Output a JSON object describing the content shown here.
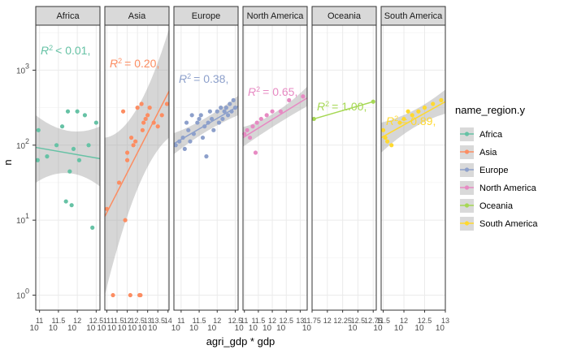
{
  "chart_data": {
    "type": "scatter",
    "xlabel": "agri_gdp * gdp",
    "ylabel": "n",
    "y_scale": "log10",
    "y_range_log10": [
      -0.2,
      3.6
    ],
    "y_ticks": [
      {
        "log10": 0,
        "base": "10",
        "exp": "0"
      },
      {
        "log10": 1,
        "base": "10",
        "exp": "1"
      },
      {
        "log10": 2,
        "base": "10",
        "exp": "2"
      },
      {
        "log10": 3,
        "base": "10",
        "exp": "3"
      }
    ],
    "legend": {
      "title": "name_region.y",
      "placement": "right",
      "items": [
        {
          "label": "Africa",
          "color": "#66C2A5"
        },
        {
          "label": "Asia",
          "color": "#FC8D62"
        },
        {
          "label": "Europe",
          "color": "#8DA0CB"
        },
        {
          "label": "North America",
          "color": "#E78AC3"
        },
        {
          "label": "Oceania",
          "color": "#A6D854"
        },
        {
          "label": "South America",
          "color": "#FFD92F"
        }
      ]
    },
    "panels": [
      {
        "name": "Africa",
        "color": "#66C2A5",
        "r2_label": "< 0.01, ",
        "xlim_log10": [
          10.9,
          12.6
        ],
        "x_ticks": [
          {
            "log10": 11,
            "base": "10",
            "exp": "11",
            "show_base": true
          },
          {
            "log10": 11.5,
            "base": "10",
            "exp": "11.5",
            "show_base": true
          },
          {
            "log10": 12,
            "base": "10",
            "exp": "12",
            "show_base": true
          },
          {
            "log10": 12.5,
            "base": "10",
            "exp": "12.5",
            "show_base": true
          }
        ],
        "points": [
          [
            10.95,
            1.8
          ],
          [
            10.97,
            2.2
          ],
          [
            11.2,
            1.85
          ],
          [
            11.6,
            2.25
          ],
          [
            11.45,
            2.0
          ],
          [
            11.8,
            1.65
          ],
          [
            12.0,
            2.45
          ],
          [
            12.3,
            2.0
          ],
          [
            12.05,
            1.8
          ],
          [
            11.7,
            1.25
          ],
          [
            11.85,
            1.2
          ],
          [
            12.2,
            2.4
          ],
          [
            12.4,
            0.9
          ],
          [
            11.9,
            1.95
          ],
          [
            12.5,
            2.3
          ],
          [
            11.75,
            2.45
          ]
        ],
        "fit": {
          "x0": 10.9,
          "y0": 1.97,
          "x1": 12.6,
          "y1": 1.82
        },
        "band": {
          "lo0": 1.5,
          "hi0": 2.4,
          "lom": 1.78,
          "him": 2.06,
          "lo1": 1.45,
          "hi1": 2.25
        }
      },
      {
        "name": "Asia",
        "color": "#FC8D62",
        "r2_label": "= 0.20, ",
        "xlim_log10": [
          10.9,
          14.05
        ],
        "x_ticks": [
          {
            "log10": 11,
            "base": "10",
            "exp": "11",
            "show_base": true
          },
          {
            "log10": 11.5,
            "base": "10",
            "exp": "11.5",
            "show_base": true
          },
          {
            "log10": 12,
            "base": "10",
            "exp": "12",
            "show_base": true
          },
          {
            "log10": 12.5,
            "base": "10",
            "exp": "12.5",
            "show_base": true
          },
          {
            "log10": 13,
            "base": "10",
            "exp": "13",
            "show_base": true
          },
          {
            "log10": 13.5,
            "base": "10",
            "exp": "13.5",
            "show_base": true
          },
          {
            "log10": 14,
            "base": "10",
            "exp": "14",
            "show_base": false
          }
        ],
        "points": [
          [
            11.0,
            1.15
          ],
          [
            11.3,
            0.0
          ],
          [
            11.6,
            1.5
          ],
          [
            11.8,
            2.45
          ],
          [
            11.9,
            1.0
          ],
          [
            12.0,
            1.9
          ],
          [
            12.15,
            0.0
          ],
          [
            12.3,
            2.0
          ],
          [
            12.4,
            2.05
          ],
          [
            12.5,
            2.5
          ],
          [
            12.6,
            0.0
          ],
          [
            12.65,
            0.0
          ],
          [
            12.7,
            2.55
          ],
          [
            12.75,
            2.2
          ],
          [
            12.8,
            2.3
          ],
          [
            12.9,
            2.35
          ],
          [
            13.0,
            2.4
          ],
          [
            13.1,
            2.5
          ],
          [
            13.3,
            2.3
          ],
          [
            13.5,
            2.25
          ],
          [
            13.7,
            2.4
          ],
          [
            13.95,
            2.55
          ],
          [
            12.0,
            1.8
          ],
          [
            12.2,
            2.1
          ]
        ],
        "fit": {
          "x0": 10.9,
          "y0": 1.05,
          "x1": 14.05,
          "y1": 2.72
        },
        "band": {
          "lo0": 0.0,
          "hi0": 2.1,
          "lom": 1.75,
          "him": 2.15,
          "lo1": 2.1,
          "hi1": 3.55
        }
      },
      {
        "name": "Europe",
        "color": "#8DA0CB",
        "r2_label": "= 0.38, ",
        "xlim_log10": [
          10.8,
          12.58
        ],
        "x_ticks": [
          {
            "log10": 11,
            "base": "10",
            "exp": "11",
            "show_base": true
          },
          {
            "log10": 11.5,
            "base": "10",
            "exp": "11.5",
            "show_base": true
          },
          {
            "log10": 12,
            "base": "10",
            "exp": "12",
            "show_base": true
          },
          {
            "log10": 12.5,
            "base": "10",
            "exp": "12.5",
            "show_base": false
          }
        ],
        "points": [
          [
            10.85,
            2.0
          ],
          [
            10.95,
            2.05
          ],
          [
            11.05,
            2.1
          ],
          [
            11.1,
            1.95
          ],
          [
            11.2,
            2.2
          ],
          [
            11.25,
            2.05
          ],
          [
            11.35,
            2.15
          ],
          [
            11.45,
            2.3
          ],
          [
            11.5,
            2.35
          ],
          [
            11.55,
            2.4
          ],
          [
            11.6,
            2.1
          ],
          [
            11.65,
            2.25
          ],
          [
            11.7,
            1.85
          ],
          [
            11.75,
            2.3
          ],
          [
            11.8,
            2.45
          ],
          [
            11.85,
            2.35
          ],
          [
            11.9,
            2.2
          ],
          [
            12.0,
            2.45
          ],
          [
            12.05,
            2.3
          ],
          [
            12.1,
            2.5
          ],
          [
            12.15,
            2.35
          ],
          [
            12.2,
            2.45
          ],
          [
            12.3,
            2.4
          ],
          [
            12.35,
            2.55
          ],
          [
            12.45,
            2.6
          ],
          [
            12.5,
            2.5
          ],
          [
            11.3,
            2.4
          ],
          [
            12.25,
            2.5
          ],
          [
            11.15,
            2.3
          ],
          [
            12.4,
            2.45
          ]
        ],
        "fit": {
          "x0": 10.8,
          "y0": 2.02,
          "x1": 12.58,
          "y1": 2.52
        },
        "band": {
          "lo0": 1.88,
          "hi0": 2.16,
          "lom": 2.22,
          "him": 2.32,
          "lo1": 2.4,
          "hi1": 2.66
        }
      },
      {
        "name": "North America",
        "color": "#E78AC3",
        "r2_label": "= 0.65, ",
        "xlim_log10": [
          10.95,
          13.25
        ],
        "x_ticks": [
          {
            "log10": 11,
            "base": "10",
            "exp": "11",
            "show_base": true
          },
          {
            "log10": 11.5,
            "base": "10",
            "exp": "11.5",
            "show_base": true
          },
          {
            "log10": 12,
            "base": "10",
            "exp": "12",
            "show_base": true
          },
          {
            "log10": 12.5,
            "base": "10",
            "exp": "12.5",
            "show_base": true
          },
          {
            "log10": 13,
            "base": "10",
            "exp": "13",
            "show_base": false
          }
        ],
        "points": [
          [
            11.0,
            2.15
          ],
          [
            11.1,
            2.2
          ],
          [
            11.2,
            2.1
          ],
          [
            11.3,
            2.25
          ],
          [
            11.4,
            1.9
          ],
          [
            11.45,
            2.3
          ],
          [
            11.6,
            2.35
          ],
          [
            11.8,
            2.4
          ],
          [
            12.0,
            2.45
          ],
          [
            12.3,
            2.45
          ],
          [
            12.6,
            2.6
          ],
          [
            13.1,
            2.65
          ]
        ],
        "fit": {
          "x0": 10.95,
          "y0": 2.1,
          "x1": 13.25,
          "y1": 2.63
        },
        "band": {
          "lo0": 1.98,
          "hi0": 2.24,
          "lom": 2.28,
          "him": 2.36,
          "lo1": 2.52,
          "hi1": 2.78
        }
      },
      {
        "name": "Oceania",
        "color": "#A6D854",
        "r2_label": "= 1.00, ",
        "xlim_log10": [
          11.75,
          12.8
        ],
        "x_ticks": [
          {
            "log10": 11.75,
            "base": "10",
            "exp": "11.75",
            "show_base": true
          },
          {
            "log10": 12,
            "base": "10",
            "exp": "12",
            "show_base": false
          },
          {
            "log10": 12.25,
            "base": "10",
            "exp": "12.25",
            "show_base": false
          },
          {
            "log10": 12.5,
            "base": "10",
            "exp": "12.5",
            "show_base": true
          },
          {
            "log10": 12.75,
            "base": "10",
            "exp": "12.75",
            "show_base": false
          }
        ],
        "points": [
          [
            11.78,
            2.35
          ],
          [
            12.75,
            2.58
          ]
        ],
        "fit": {
          "x0": 11.78,
          "y0": 2.35,
          "x1": 12.75,
          "y1": 2.58
        },
        "band": null
      },
      {
        "name": "South America",
        "color": "#FFD92F",
        "r2_label": "= 0.89, ",
        "xlim_log10": [
          11.45,
          13.0
        ],
        "x_ticks": [
          {
            "log10": 11.5,
            "base": "10",
            "exp": "11.5",
            "show_base": true
          },
          {
            "log10": 12,
            "base": "10",
            "exp": "12",
            "show_base": true
          },
          {
            "log10": 12.5,
            "base": "10",
            "exp": "12.5",
            "show_base": true
          },
          {
            "log10": 13,
            "base": "10",
            "exp": "13",
            "show_base": true
          }
        ],
        "points": [
          [
            11.5,
            2.2
          ],
          [
            11.6,
            2.05
          ],
          [
            11.7,
            2.0
          ],
          [
            11.9,
            2.3
          ],
          [
            12.0,
            2.35
          ],
          [
            12.1,
            2.45
          ],
          [
            12.2,
            2.4
          ],
          [
            12.35,
            2.45
          ],
          [
            12.5,
            2.5
          ],
          [
            12.7,
            2.55
          ],
          [
            12.9,
            2.6
          ],
          [
            11.55,
            2.1
          ]
        ],
        "fit": {
          "x0": 11.45,
          "y0": 2.1,
          "x1": 13.0,
          "y1": 2.58
        },
        "band": {
          "lo0": 1.9,
          "hi0": 2.3,
          "lom": 2.3,
          "him": 2.4,
          "lo1": 2.42,
          "hi1": 2.74
        }
      }
    ]
  }
}
